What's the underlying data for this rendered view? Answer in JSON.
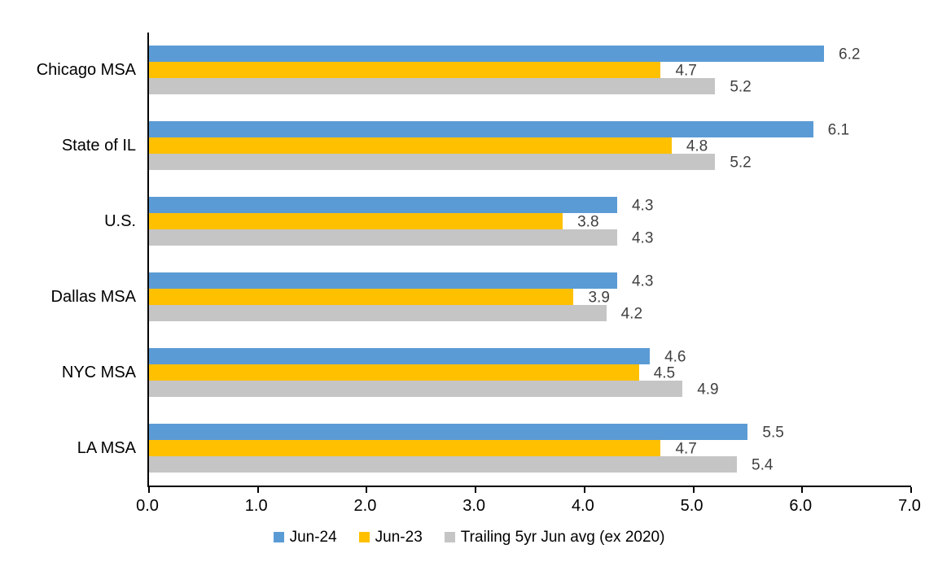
{
  "chart_data": {
    "type": "bar",
    "orientation": "horizontal",
    "title": "",
    "categories": [
      "Chicago MSA",
      "State of IL",
      "U.S.",
      "Dallas MSA",
      "NYC MSA",
      "LA MSA"
    ],
    "series": [
      {
        "name": "Jun-24",
        "color": "#5B9BD5",
        "values": [
          6.2,
          6.1,
          4.3,
          4.3,
          4.6,
          5.5
        ]
      },
      {
        "name": "Jun-23",
        "color": "#FFC000",
        "values": [
          4.7,
          4.8,
          3.8,
          3.9,
          4.5,
          4.7
        ]
      },
      {
        "name": "Trailing 5yr Jun avg (ex 2020)",
        "color": "#C5C5C5",
        "values": [
          5.2,
          5.2,
          4.3,
          4.2,
          4.9,
          5.4
        ]
      }
    ],
    "xlim": [
      0,
      7
    ],
    "x_ticks": [
      "0.0",
      "1.0",
      "2.0",
      "3.0",
      "4.0",
      "5.0",
      "6.0",
      "7.0"
    ],
    "grid": false,
    "data_labels": true,
    "data_label_color": "#404040",
    "axis_color": "#000000",
    "legend_position": "bottom"
  }
}
